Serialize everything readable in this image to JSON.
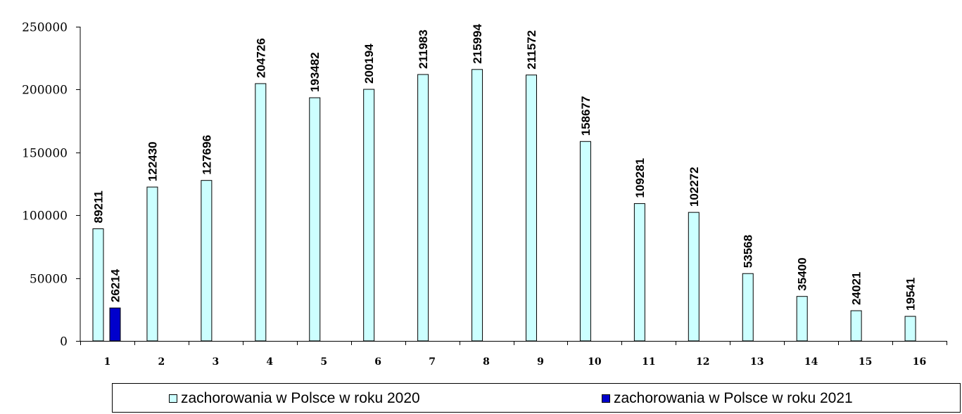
{
  "chart_data": {
    "type": "bar",
    "categories": [
      "1",
      "2",
      "3",
      "4",
      "5",
      "6",
      "7",
      "8",
      "9",
      "10",
      "11",
      "12",
      "13",
      "14",
      "15",
      "16"
    ],
    "series": [
      {
        "name": "zachorowania w Polsce w roku 2020",
        "color": "#ccffff",
        "values": [
          89211,
          122430,
          127696,
          204726,
          193482,
          200194,
          211983,
          215994,
          211572,
          158677,
          109281,
          102272,
          53568,
          35400,
          24021,
          19541
        ]
      },
      {
        "name": "zachorowania w Polsce w roku 2021",
        "color": "#0000cc",
        "values": [
          26214,
          null,
          null,
          null,
          null,
          null,
          null,
          null,
          null,
          null,
          null,
          null,
          null,
          null,
          null,
          null
        ]
      }
    ],
    "yticks": [
      "0",
      "50000",
      "100000",
      "150000",
      "200000",
      "250000"
    ],
    "ylim": [
      0,
      250000
    ],
    "legend_position": "bottom"
  }
}
